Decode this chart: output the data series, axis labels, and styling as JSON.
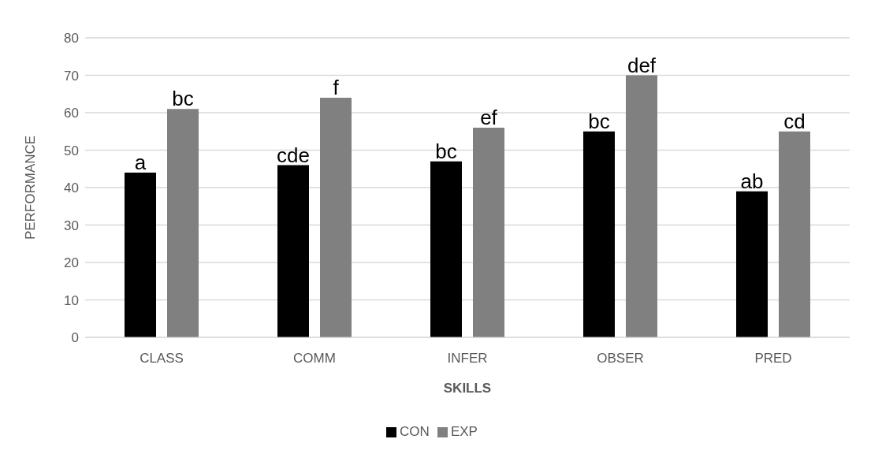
{
  "chart_data": {
    "type": "bar",
    "xlabel": "SKILLS",
    "ylabel": "PERFORMANCE",
    "categories": [
      "CLASS",
      "COMM",
      "INFER",
      "OBSER",
      "PRED"
    ],
    "series": [
      {
        "name": "CON",
        "color": "#000000",
        "values": [
          44,
          46,
          47,
          55,
          39
        ],
        "value_labels": [
          "a",
          "cde",
          "bc",
          "bc",
          "ab"
        ]
      },
      {
        "name": "EXP",
        "color": "#808080",
        "values": [
          61,
          64,
          56,
          70,
          55
        ],
        "value_labels": [
          "bc",
          "f",
          "ef",
          "def",
          "cd"
        ]
      }
    ],
    "ylim": [
      0,
      80
    ],
    "yticks": [
      0,
      10,
      20,
      30,
      40,
      50,
      60,
      70,
      80
    ],
    "grid": "y",
    "legend": "bottom"
  }
}
